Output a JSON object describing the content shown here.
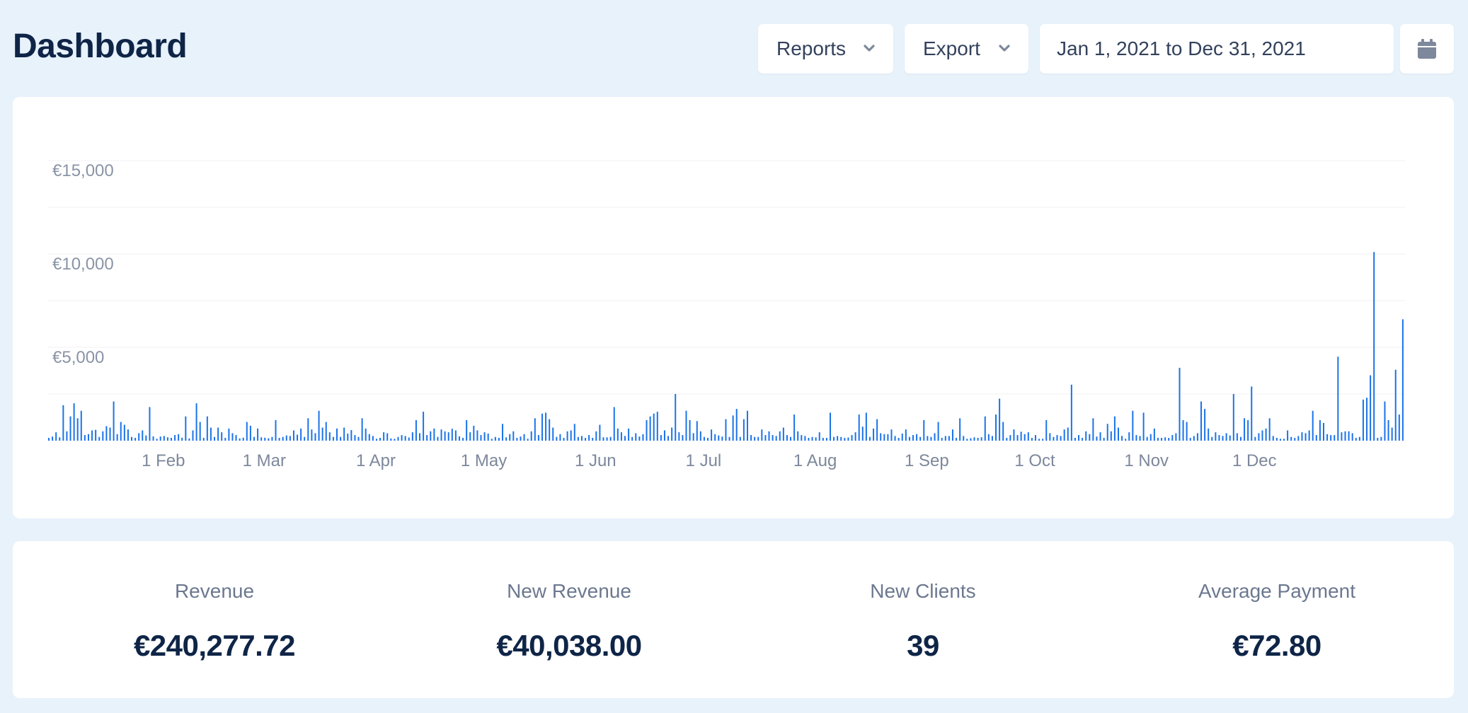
{
  "header": {
    "title": "Dashboard"
  },
  "toolbar": {
    "reports_label": "Reports",
    "export_label": "Export",
    "date_range": "Jan 1, 2021 to Dec 31, 2021",
    "calendar_icon": "calendar-icon"
  },
  "colors": {
    "accent": "#1b73e8",
    "background": "#e8f2fb",
    "title": "#0f2547"
  },
  "chart_data": {
    "type": "bar",
    "title": "",
    "xlabel": "",
    "ylabel": "",
    "ylim": [
      0,
      15000
    ],
    "ytick_values": [
      5000,
      10000,
      15000
    ],
    "ytick_labels": [
      "€5,000",
      "€10,000",
      "€15,000"
    ],
    "grid": true,
    "x_tick_labels": [
      "1 Feb",
      "1 Mar",
      "1 Apr",
      "1 May",
      "1 Jun",
      "1 Jul",
      "1 Aug",
      "1 Sep",
      "1 Oct",
      "1 Nov",
      "1 Dec"
    ],
    "x_tick_days": [
      32,
      60,
      91,
      121,
      152,
      182,
      213,
      244,
      274,
      305,
      335
    ],
    "series": [
      {
        "values": [
          150,
          220,
          450,
          180,
          1900,
          500,
          1300,
          2000,
          1200,
          1600,
          300,
          350,
          550,
          580,
          200,
          500,
          780,
          700,
          2100,
          350,
          1000,
          850,
          600,
          200,
          150,
          400,
          550,
          280,
          1800,
          230,
          100,
          220,
          250,
          180,
          150,
          300,
          350,
          160,
          1300,
          120,
          550,
          2000,
          1000,
          150,
          1300,
          700,
          200,
          700,
          450,
          150,
          650,
          400,
          300,
          120,
          160,
          1000,
          800,
          200,
          650,
          180,
          160,
          130,
          200,
          1100,
          150,
          200,
          280,
          250,
          550,
          320,
          650,
          200,
          1200,
          600,
          400,
          1600,
          700,
          1000,
          450,
          200,
          650,
          200,
          700,
          380,
          570,
          300,
          200,
          1200,
          650,
          350,
          250,
          100,
          150,
          450,
          400,
          120,
          100,
          200,
          300,
          250,
          170,
          450,
          1100,
          400,
          1550,
          300,
          500,
          650,
          200,
          600,
          500,
          450,
          640,
          550,
          230,
          150,
          1100,
          450,
          800,
          550,
          300,
          450,
          380,
          100,
          200,
          150,
          900,
          180,
          350,
          500,
          150,
          220,
          350,
          100,
          500,
          1200,
          300,
          1450,
          1500,
          1150,
          700,
          200,
          350,
          150,
          500,
          550,
          900,
          200,
          250,
          150,
          300,
          150,
          500,
          850,
          180,
          180,
          200,
          1800,
          650,
          450,
          250,
          650,
          200,
          400,
          220,
          350,
          1100,
          1300,
          1450,
          1550,
          300,
          550,
          250,
          700,
          2500,
          450,
          300,
          1600,
          1100,
          400,
          1050,
          500,
          200,
          150,
          600,
          350,
          280,
          220,
          1150,
          200,
          1350,
          1700,
          200,
          1150,
          1600,
          300,
          200,
          200,
          600,
          300,
          500,
          300,
          250,
          500,
          700,
          300,
          200,
          1400,
          500,
          300,
          250,
          150,
          200,
          180,
          450,
          150,
          150,
          1500,
          200,
          250,
          200,
          150,
          170,
          300,
          450,
          1400,
          750,
          1500,
          200,
          650,
          1150,
          400,
          350,
          350,
          600,
          250,
          150,
          380,
          600,
          200,
          300,
          350,
          200,
          1100,
          250,
          200,
          400,
          1000,
          150,
          250,
          250,
          600,
          150,
          1200,
          250,
          100,
          130,
          180,
          150,
          180,
          1300,
          350,
          250,
          1400,
          2250,
          1000,
          150,
          300,
          600,
          300,
          480,
          350,
          450,
          150,
          300,
          100,
          100,
          1100,
          400,
          200,
          300,
          250,
          600,
          700,
          3000,
          150,
          300,
          150,
          500,
          350,
          1200,
          220,
          450,
          150,
          900,
          500,
          1300,
          700,
          250,
          100,
          450,
          1600,
          300,
          250,
          1500,
          200,
          350,
          650,
          150,
          150,
          180,
          150,
          300,
          400,
          3900,
          1100,
          1000,
          150,
          250,
          400,
          2100,
          1700,
          650,
          200,
          450,
          300,
          250,
          400,
          280,
          2500,
          400,
          200,
          1200,
          1100,
          2900,
          200,
          400,
          550,
          650,
          1200,
          250,
          150,
          100,
          100,
          550,
          200,
          150,
          250,
          450,
          400,
          550,
          1600,
          300,
          1100,
          950,
          350,
          300,
          300,
          4500,
          450,
          500,
          500,
          400,
          150,
          200,
          2200,
          2300,
          3500,
          10100,
          150,
          200,
          2100,
          1100,
          700,
          3800,
          1400,
          6500
        ]
      }
    ]
  },
  "stats": [
    {
      "label": "Revenue",
      "value": "€240,277.72"
    },
    {
      "label": "New Revenue",
      "value": "€40,038.00"
    },
    {
      "label": "New Clients",
      "value": "39"
    },
    {
      "label": "Average Payment",
      "value": "€72.80"
    }
  ]
}
